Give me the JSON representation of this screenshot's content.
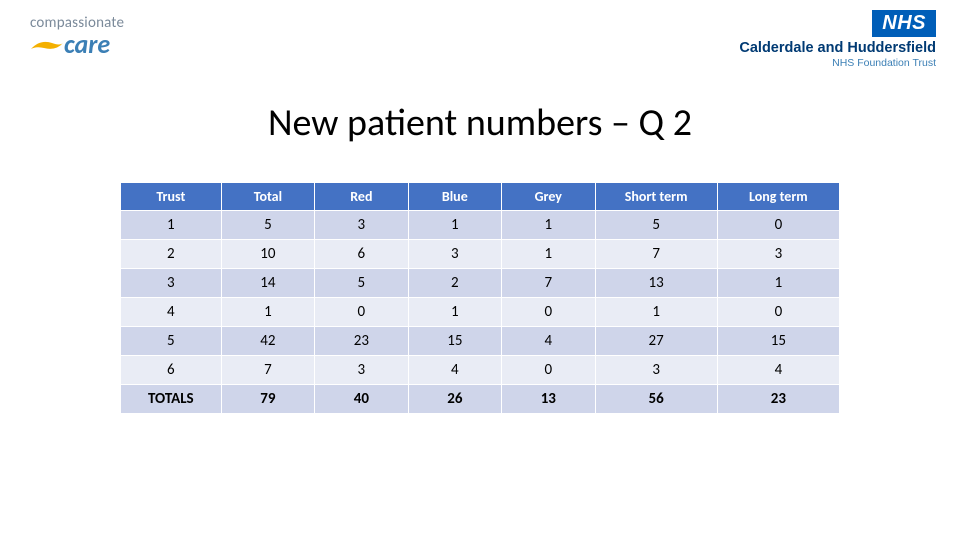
{
  "logo_left": {
    "line1": "compassionate",
    "line2": "care",
    "colors": {
      "line1": "#7b8a9a",
      "line2": "#3b7fb5",
      "swoosh": "#f4b000"
    }
  },
  "logo_right": {
    "nhs": "NHS",
    "trust_name": "Calderdale and Huddersfield",
    "trust_sub": "NHS Foundation Trust",
    "colors": {
      "nhs_bg": "#005eb8",
      "nhs_fg": "#ffffff",
      "name": "#003a73",
      "sub": "#3b7fb5"
    }
  },
  "title": "New patient numbers – Q 2",
  "table": {
    "type": "table",
    "columns": [
      "Trust",
      "Total",
      "Red",
      "Blue",
      "Grey",
      "Short term",
      "Long term"
    ],
    "col_widths_pct": [
      14,
      13,
      13,
      13,
      13,
      17,
      17
    ],
    "header_bg": "#4472c4",
    "header_fg": "#ffffff",
    "band_colors": [
      "#cfd5ea",
      "#e9ecf5"
    ],
    "border_color": "#ffffff",
    "font_size_header": 14,
    "font_size_body": 15,
    "rows": [
      [
        "1",
        "5",
        "3",
        "1",
        "1",
        "5",
        "0"
      ],
      [
        "2",
        "10",
        "6",
        "3",
        "1",
        "7",
        "3"
      ],
      [
        "3",
        "14",
        "5",
        "2",
        "7",
        "13",
        "1"
      ],
      [
        "4",
        "1",
        "0",
        "1",
        "0",
        "1",
        "0"
      ],
      [
        "5",
        "42",
        "23",
        "15",
        "4",
        "27",
        "15"
      ],
      [
        "6",
        "7",
        "3",
        "4",
        "0",
        "3",
        "4"
      ],
      [
        "TOTALS",
        "79",
        "40",
        "26",
        "13",
        "56",
        "23"
      ]
    ],
    "totals_row_index": 6
  }
}
